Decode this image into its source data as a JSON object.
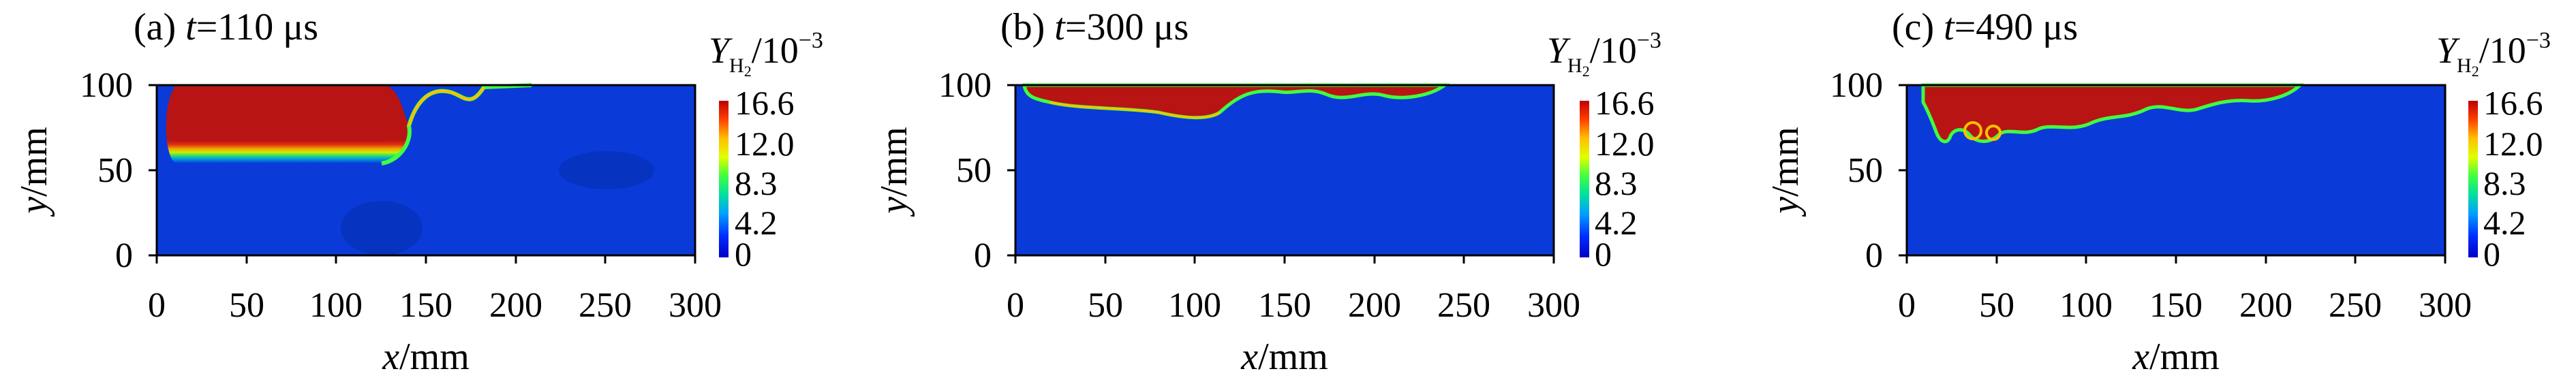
{
  "chart_data": [
    {
      "type": "heatmap",
      "title_prefix": "(a) ",
      "title_var": "t",
      "title_value": "=110 μs",
      "xlabel_var": "x",
      "xlabel_unit": "/mm",
      "ylabel_var": "y",
      "ylabel_unit": "/mm",
      "xlim": [
        0,
        300
      ],
      "ylim": [
        0,
        100
      ],
      "x_ticks": [
        "0",
        "50",
        "100",
        "150",
        "200",
        "250",
        "300"
      ],
      "y_ticks": [
        "0",
        "50",
        "100"
      ],
      "colorbar_label": {
        "main": "Y",
        "sub": "H",
        "sub2": "2",
        "rest": "/10",
        "sup": "−3"
      },
      "colorbar_ticks": [
        "16.6",
        "12.0",
        "8.3",
        "4.2",
        "0"
      ],
      "colorbar_range": [
        0,
        16.6
      ],
      "field": "H2 mass fraction; H2-rich region occupies upper-left from x≈5 to x≈135 mm, lower edge y≈55 mm, boundary curving up to y≈100 at x≈160 mm"
    },
    {
      "type": "heatmap",
      "title_prefix": "(b) ",
      "title_var": "t",
      "title_value": "=300 μs",
      "xlabel_var": "x",
      "xlabel_unit": "/mm",
      "ylabel_var": "y",
      "ylabel_unit": "/mm",
      "xlim": [
        0,
        300
      ],
      "ylim": [
        0,
        100
      ],
      "x_ticks": [
        "0",
        "50",
        "100",
        "150",
        "200",
        "250",
        "300"
      ],
      "y_ticks": [
        "0",
        "50",
        "100"
      ],
      "colorbar_label": {
        "main": "Y",
        "sub": "H",
        "sub2": "2",
        "rest": "/10",
        "sup": "−3"
      },
      "colorbar_ticks": [
        "16.6",
        "12.0",
        "8.3",
        "4.2",
        "0"
      ],
      "colorbar_range": [
        0,
        16.6
      ],
      "field": "H2-rich layer along top wall from x≈5 to x≈240 mm, thickness up to ≈20 mm near x≈100 mm"
    },
    {
      "type": "heatmap",
      "title_prefix": "(c) ",
      "title_var": "t",
      "title_value": "=490 μs",
      "xlabel_var": "x",
      "xlabel_unit": "/mm",
      "ylabel_var": "y",
      "ylabel_unit": "/mm",
      "xlim": [
        0,
        300
      ],
      "ylim": [
        0,
        100
      ],
      "x_ticks": [
        "0",
        "50",
        "100",
        "150",
        "200",
        "250",
        "300"
      ],
      "y_ticks": [
        "0",
        "50",
        "100"
      ],
      "colorbar_label": {
        "main": "Y",
        "sub": "H",
        "sub2": "2",
        "rest": "/10",
        "sup": "−3"
      },
      "colorbar_ticks": [
        "16.6",
        "12.0",
        "8.3",
        "4.2",
        "0"
      ],
      "colorbar_range": [
        0,
        16.6
      ],
      "field": "H2-rich region along top wall from x≈10 to x≈215 mm, rolled-up vortices near x≈15-50 mm reaching y≈70 mm"
    }
  ],
  "colors": {
    "colormap": [
      "#0000c8",
      "#0030ff",
      "#00a0ff",
      "#00e0a0",
      "#40ff40",
      "#e0ff00",
      "#ffc000",
      "#ff4000",
      "#c00000"
    ],
    "field_background": "#0a3ad8",
    "h2_rich": "#b81414"
  }
}
